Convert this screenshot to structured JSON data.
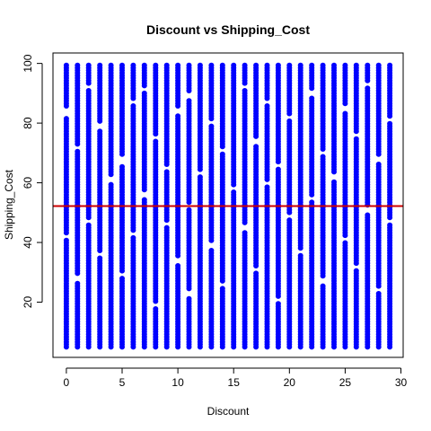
{
  "chart_data": {
    "type": "scatter",
    "title": "Discount vs Shipping_Cost",
    "xlabel": "Discount",
    "ylabel": "Shipping_Cost",
    "xlim": [
      -1.2,
      30.2
    ],
    "ylim": [
      1.5,
      103.5
    ],
    "x_ticks": [
      0,
      5,
      10,
      15,
      20,
      25,
      30
    ],
    "y_ticks": [
      20,
      40,
      60,
      80,
      100
    ],
    "grid": false,
    "point_color": "#0000ff",
    "reference_line": {
      "y": 52.2,
      "color": "#cc0000"
    },
    "series": [
      {
        "x_values": [
          0,
          1,
          2,
          3,
          4,
          5,
          6,
          7,
          8,
          9,
          10,
          11,
          12,
          13,
          14,
          15,
          16,
          17,
          18,
          19,
          20,
          21,
          22,
          23,
          24,
          25,
          26,
          27,
          28,
          29
        ],
        "y_min": 5,
        "y_max": 100,
        "gaps": {
          "0": [
            [
              41,
              43
            ],
            [
              82,
              85
            ]
          ],
          "1": [
            [
              27,
              29
            ],
            [
              71,
              73
            ]
          ],
          "2": [
            [
              46,
              48
            ],
            [
              91,
              93
            ]
          ],
          "3": [
            [
              35,
              37
            ],
            [
              78,
              80
            ]
          ],
          "4": [
            [
              60,
              62
            ]
          ],
          "5": [
            [
              28,
              30
            ],
            [
              66,
              69
            ]
          ],
          "6": [
            [
              42,
              44
            ],
            [
              86,
              88
            ]
          ],
          "7": [
            [
              55,
              57
            ],
            [
              90,
              92
            ]
          ],
          "8": [
            [
              18,
              20
            ],
            [
              74,
              76
            ]
          ],
          "9": [
            [
              45,
              47
            ],
            [
              64,
              66
            ]
          ],
          "10": [
            [
              33,
              35
            ],
            [
              83,
              85
            ]
          ],
          "11": [
            [
              22,
              24
            ],
            [
              51,
              53
            ],
            [
              88,
              90
            ]
          ],
          "12": [
            [
              62,
              64
            ]
          ],
          "13": [
            [
              38,
              40
            ],
            [
              79,
              81
            ]
          ],
          "14": [
            [
              25,
              27
            ],
            [
              70,
              72
            ]
          ],
          "15": [
            [
              57,
              59
            ]
          ],
          "16": [
            [
              44,
              46
            ],
            [
              91,
              93
            ]
          ],
          "17": [
            [
              30,
              32
            ],
            [
              73,
              75
            ]
          ],
          "18": [
            [
              59,
              61
            ],
            [
              86,
              88
            ]
          ],
          "19": [
            [
              20,
              22
            ],
            [
              65,
              67
            ]
          ],
          "20": [
            [
              48,
              50
            ],
            [
              81,
              83
            ]
          ],
          "21": [
            [
              36,
              38
            ]
          ],
          "22": [
            [
              54,
              56
            ],
            [
              89,
              91
            ]
          ],
          "23": [
            [
              26,
              28
            ],
            [
              69,
              71
            ]
          ],
          "24": [
            [
              61,
              63
            ]
          ],
          "25": [
            [
              40,
              42
            ],
            [
              84,
              86
            ]
          ],
          "26": [
            [
              31,
              33
            ],
            [
              75,
              77
            ]
          ],
          "27": [
            [
              50,
              52
            ],
            [
              92,
              94
            ]
          ],
          "28": [
            [
              23,
              25
            ],
            [
              67,
              69
            ]
          ],
          "29": [
            [
              46,
              48
            ],
            [
              80,
              82
            ]
          ]
        }
      }
    ]
  }
}
